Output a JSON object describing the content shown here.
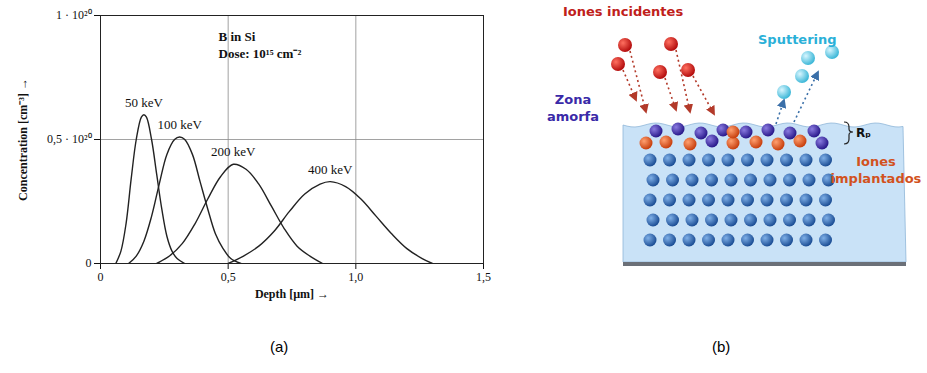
{
  "chart_data": {
    "type": "line",
    "title": "B in Si",
    "subtitle": "Dose: 10¹⁵ cm⁻²",
    "x_label": "Depth [µm] →",
    "y_label": "Concentration [cm⁻³] →",
    "xlim": [
      0,
      1.5
    ],
    "ylim": [
      0,
      1e+20
    ],
    "xticks": [
      0,
      {
        "value": 0.5,
        "label": "0,5"
      },
      {
        "value": 1,
        "label": "1,0"
      },
      {
        "value": 1.5,
        "label": "1,5"
      }
    ],
    "yticks": [
      0,
      {
        "value": 5e+19,
        "label": "0,5 · 10²⁰"
      },
      {
        "value": 1e+20,
        "label": "1 · 10²⁰"
      }
    ],
    "grid": true,
    "series": [
      {
        "name": "50 keV",
        "color": "#222222",
        "x": [
          0.06,
          0.08,
          0.1,
          0.12,
          0.14,
          0.16,
          0.17,
          0.18,
          0.2,
          0.22,
          0.24,
          0.26,
          0.28,
          0.3,
          0.33
        ],
        "values": [
          0,
          5e+18,
          1.6e+19,
          3.4e+19,
          5e+19,
          5.9e+19,
          6e+19,
          5.9e+19,
          5e+19,
          3.6e+19,
          2.2e+19,
          1.1e+19,
          5e+18,
          2e+18,
          0
        ]
      },
      {
        "name": "100 keV",
        "color": "#222222",
        "x": [
          0.11,
          0.14,
          0.17,
          0.2,
          0.23,
          0.26,
          0.29,
          0.31,
          0.33,
          0.36,
          0.39,
          0.42,
          0.45,
          0.48,
          0.51,
          0.55
        ],
        "values": [
          0,
          3e+18,
          9e+18,
          1.9e+19,
          3.2e+19,
          4.4e+19,
          5e+19,
          5.1e+19,
          5e+19,
          4.4e+19,
          3.3e+19,
          2.2e+19,
          1.2e+19,
          6e+18,
          2e+18,
          0
        ]
      },
      {
        "name": "200 keV",
        "color": "#222222",
        "x": [
          0.22,
          0.27,
          0.32,
          0.37,
          0.42,
          0.47,
          0.52,
          0.57,
          0.62,
          0.67,
          0.72,
          0.77,
          0.82,
          0.87
        ],
        "values": [
          0,
          3e+18,
          8e+18,
          1.6e+19,
          2.6e+19,
          3.5e+19,
          4e+19,
          3.8e+19,
          3.2e+19,
          2.3e+19,
          1.4e+19,
          7e+18,
          3e+18,
          0
        ]
      },
      {
        "name": "400 keV",
        "color": "#222222",
        "x": [
          0.5,
          0.56,
          0.62,
          0.68,
          0.74,
          0.8,
          0.86,
          0.9,
          0.96,
          1.02,
          1.08,
          1.14,
          1.2,
          1.26,
          1.3
        ],
        "values": [
          0,
          3e+18,
          7e+18,
          1.3e+19,
          2.1e+19,
          2.8e+19,
          3.2e+19,
          3.3e+19,
          3.1e+19,
          2.6e+19,
          1.9e+19,
          1.2e+19,
          6e+18,
          2e+18,
          0
        ]
      }
    ]
  },
  "panel_labels": [
    "(a)",
    "(b)"
  ],
  "diagram": {
    "incident_ions": "Iones incidentes",
    "sputtering": "Sputtering",
    "amorphous_zone": "Zona amorfa",
    "implanted_ions": "Iones implantados",
    "range_label": "Rₚ"
  }
}
